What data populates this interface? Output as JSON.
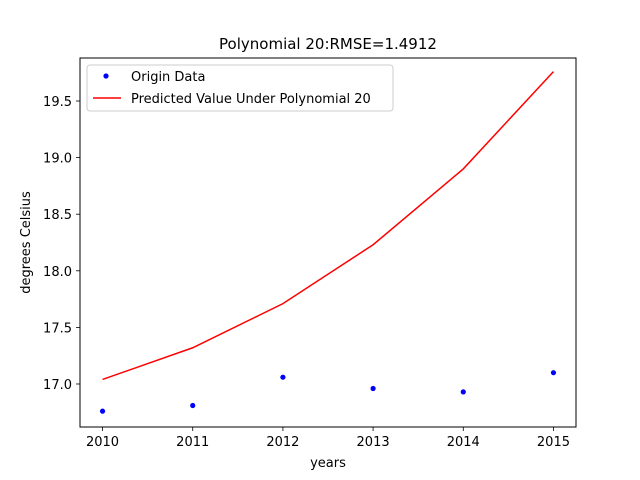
{
  "chart_data": {
    "type": "line",
    "title": "Polynomial 20:RMSE=1.4912",
    "xlabel": "years",
    "ylabel": "degrees Celsius",
    "xlim": [
      2009.75,
      2015.25
    ],
    "ylim": [
      16.62,
      19.88
    ],
    "xticks": [
      2010,
      2011,
      2012,
      2013,
      2014,
      2015
    ],
    "yticks": [
      17.0,
      17.5,
      18.0,
      18.5,
      19.0,
      19.5
    ],
    "ytick_labels": [
      "17.0",
      "17.5",
      "18.0",
      "18.5",
      "19.0",
      "19.5"
    ],
    "grid": false,
    "legend_position": "upper-left",
    "series": [
      {
        "name": "Origin Data",
        "style": "points",
        "color": "#0000ff",
        "x": [
          2010,
          2011,
          2012,
          2013,
          2014,
          2015
        ],
        "y": [
          16.76,
          16.81,
          17.06,
          16.96,
          16.93,
          17.1
        ]
      },
      {
        "name": "Predicted Value Under Polynomial 20",
        "style": "line",
        "color": "#ff0000",
        "x": [
          2010,
          2011,
          2012,
          2013,
          2014,
          2015
        ],
        "y": [
          17.04,
          17.32,
          17.71,
          18.23,
          18.9,
          19.76
        ]
      }
    ]
  }
}
